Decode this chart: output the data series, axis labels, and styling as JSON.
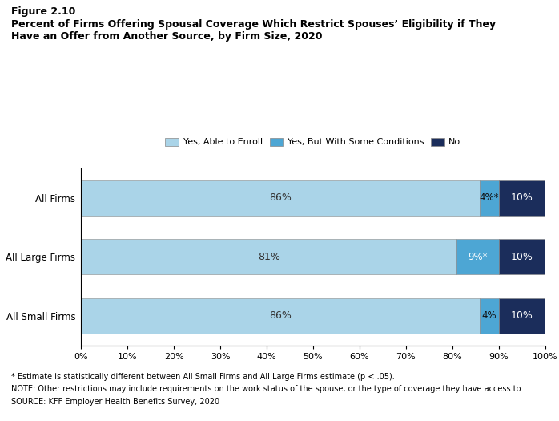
{
  "title_line1": "Figure 2.10",
  "title_line2": "Percent of Firms Offering Spousal Coverage Which Restrict Spouses’ Eligibility if They",
  "title_line3": "Have an Offer from Another Source, by Firm Size, 2020",
  "categories": [
    "All Small Firms",
    "All Large Firms",
    "All Firms"
  ],
  "series": {
    "Yes, Able to Enroll": [
      86,
      81,
      86
    ],
    "Yes, But With Some Conditions": [
      4,
      9,
      4
    ],
    "No": [
      10,
      10,
      10
    ]
  },
  "labels": {
    "Yes, Able to Enroll": [
      "86%",
      "81%",
      "86%"
    ],
    "Yes, But With Some Conditions": [
      "4%*",
      "9%*",
      "4%"
    ],
    "No": [
      "10%",
      "10%",
      "10%"
    ]
  },
  "colors": {
    "Yes, Able to Enroll": "#aad4e8",
    "Yes, But With Some Conditions": "#4da6d4",
    "No": "#1b2d5b"
  },
  "xlim": [
    0,
    100
  ],
  "xticks": [
    0,
    10,
    20,
    30,
    40,
    50,
    60,
    70,
    80,
    90,
    100
  ],
  "xtick_labels": [
    "0%",
    "10%",
    "20%",
    "30%",
    "40%",
    "50%",
    "60%",
    "70%",
    "80%",
    "90%",
    "100%"
  ],
  "footnote1": "* Estimate is statistically different between All Small Firms and All Large Firms estimate (p < .05).",
  "footnote2": "NOTE: Other restrictions may include requirements on the work status of the spouse, or the type of coverage they have access to.",
  "footnote3": "SOURCE: KFF Employer Health Benefits Survey, 2020"
}
